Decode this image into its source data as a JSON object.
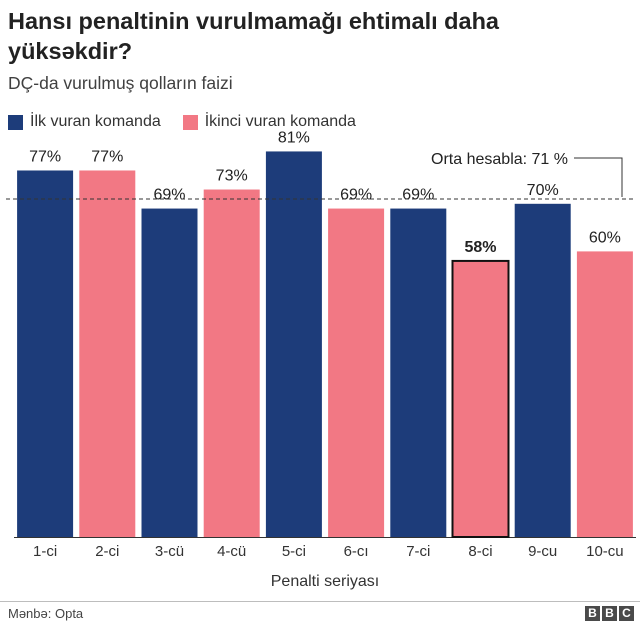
{
  "colors": {
    "first": "#1d3c7a",
    "second": "#f27884",
    "highlight_border": "#111111"
  },
  "chart_data": {
    "type": "bar",
    "title": "Hansı penaltinin vurulmamağı ehtimalı daha yüksəkdir?",
    "subtitle": "DÇ-da vurulmuş qolların faizi",
    "xlabel": "Penalti seriyası",
    "ylabel": "",
    "ylim": [
      0,
      100
    ],
    "grid": false,
    "legend_placement": "top-left",
    "legend": [
      {
        "label": "İlk vuran komanda",
        "color": "#1d3c7a"
      },
      {
        "label": "İkinci vuran komanda",
        "color": "#f27884"
      }
    ],
    "categories": [
      "1-ci",
      "2-ci",
      "3-cü",
      "4-cü",
      "5-ci",
      "6-cı",
      "7-ci",
      "8-ci",
      "9-cu",
      "10-cu"
    ],
    "values": [
      77,
      77,
      69,
      73,
      81,
      69,
      69,
      58,
      70,
      60
    ],
    "value_labels": [
      "77%",
      "77%",
      "69%",
      "73%",
      "81%",
      "69%",
      "69%",
      "58%",
      "70%",
      "60%"
    ],
    "team": [
      "first",
      "second",
      "first",
      "second",
      "first",
      "second",
      "first",
      "second",
      "first",
      "second"
    ],
    "highlight_index": 7,
    "average": {
      "value": 71,
      "label": "Orta hesabla: 71 %"
    }
  },
  "footer": {
    "source": "Mənbə: Opta",
    "logo_letters": [
      "B",
      "B",
      "C"
    ]
  }
}
